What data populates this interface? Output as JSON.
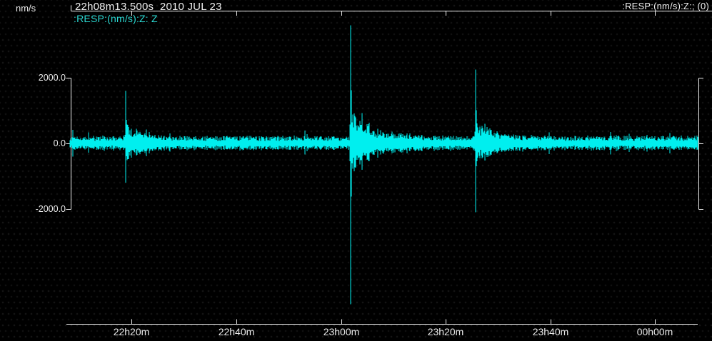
{
  "colors": {
    "background": "#000000",
    "trace": "#00EFEF",
    "axis": "#EFEFEF",
    "text": "#E9E9E9",
    "channel_label": "#2BD8D2"
  },
  "header": {
    "units_label": "nm/s",
    "title": "22h08m13.500s  2010 JUL 23",
    "channel_label": ":RESP:(nm/s):Z: Z",
    "file_label": ":RESP:(nm/s):Z:; (0)"
  },
  "chart_data": {
    "type": "line",
    "kind": "seismogram",
    "title": "22h08m13.500s  2010 JUL 23",
    "start_time": "22h08m13.500s",
    "date": "2010 JUL 23",
    "ylabel": "nm/s",
    "ylim": [
      -2000,
      2000
    ],
    "y_ticks": [
      {
        "label": "2000.0",
        "value": 2000
      },
      {
        "label": "0.0",
        "value": 0
      },
      {
        "label": "-2000.0",
        "value": -2000
      }
    ],
    "x_ticks": [
      {
        "label": "22h20m",
        "min": 20
      },
      {
        "label": "22h40m",
        "min": 40
      },
      {
        "label": "23h00m",
        "min": 60
      },
      {
        "label": "23h20m",
        "min": 80
      },
      {
        "label": "23h40m",
        "min": 100
      },
      {
        "label": "00h00m",
        "min": 120
      }
    ],
    "x_range_min": [
      8.225,
      128.2
    ],
    "grid": false,
    "legend": false,
    "noise_rms_nm_s": 150,
    "events": [
      {
        "time": "22h19m",
        "t_min": 18.9,
        "peak_nm_s": 1600,
        "trough_nm_s": -1200,
        "coda_nm_s": 390,
        "coda_min": 6
      },
      {
        "time": "23h02m",
        "t_min": 61.9,
        "peak_nm_s": 3600,
        "trough_nm_s": -4900,
        "coda_nm_s": 650,
        "coda_min": 12
      },
      {
        "time": "23h25m",
        "t_min": 85.7,
        "peak_nm_s": 2250,
        "trough_nm_s": -2100,
        "coda_nm_s": 430,
        "coda_min": 8
      }
    ]
  }
}
